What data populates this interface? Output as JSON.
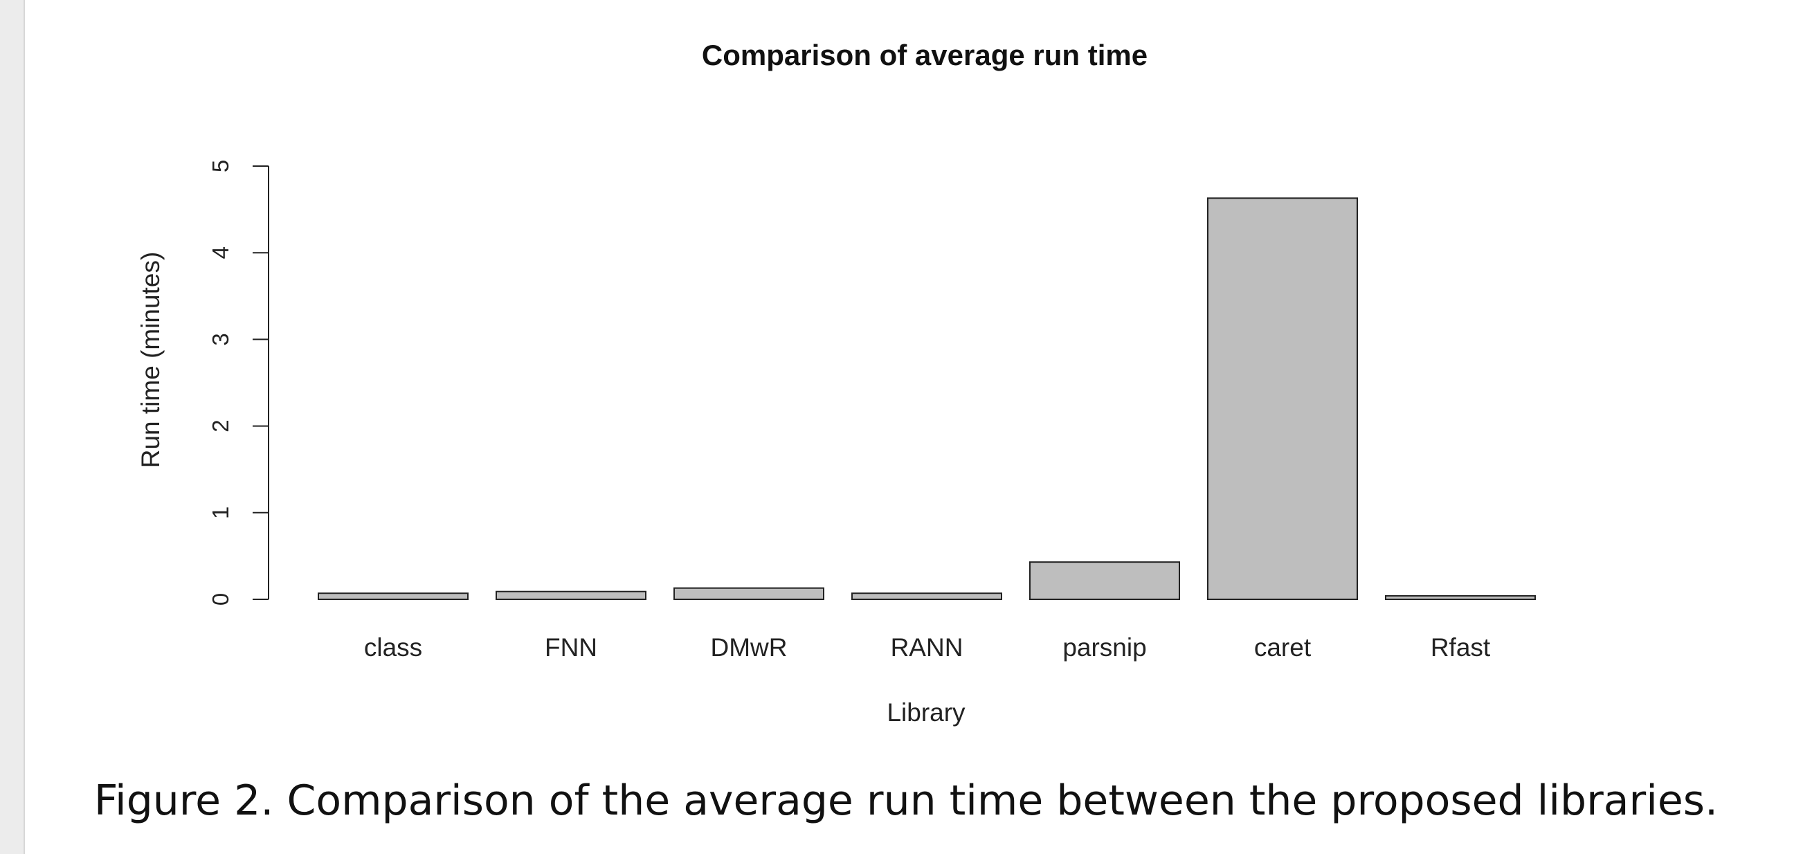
{
  "chart_data": {
    "type": "bar",
    "title": "Comparison of average run time",
    "xlabel": "Library",
    "ylabel": "Run time (minutes)",
    "categories": [
      "class",
      "FNN",
      "DMwR",
      "RANN",
      "parsnip",
      "caret",
      "Rfast"
    ],
    "values": [
      0.07,
      0.09,
      0.13,
      0.07,
      0.43,
      4.63,
      0.04
    ],
    "yticks": [
      0,
      1,
      2,
      3,
      4,
      5
    ],
    "ylim": [
      0,
      5
    ],
    "grid": false,
    "legend": "none",
    "colors": {
      "bar_fill": "#bebebe",
      "bar_stroke": "#222222",
      "axis": "#222222"
    }
  },
  "caption": "Figure 2. Comparison of the average run time between the proposed libraries."
}
